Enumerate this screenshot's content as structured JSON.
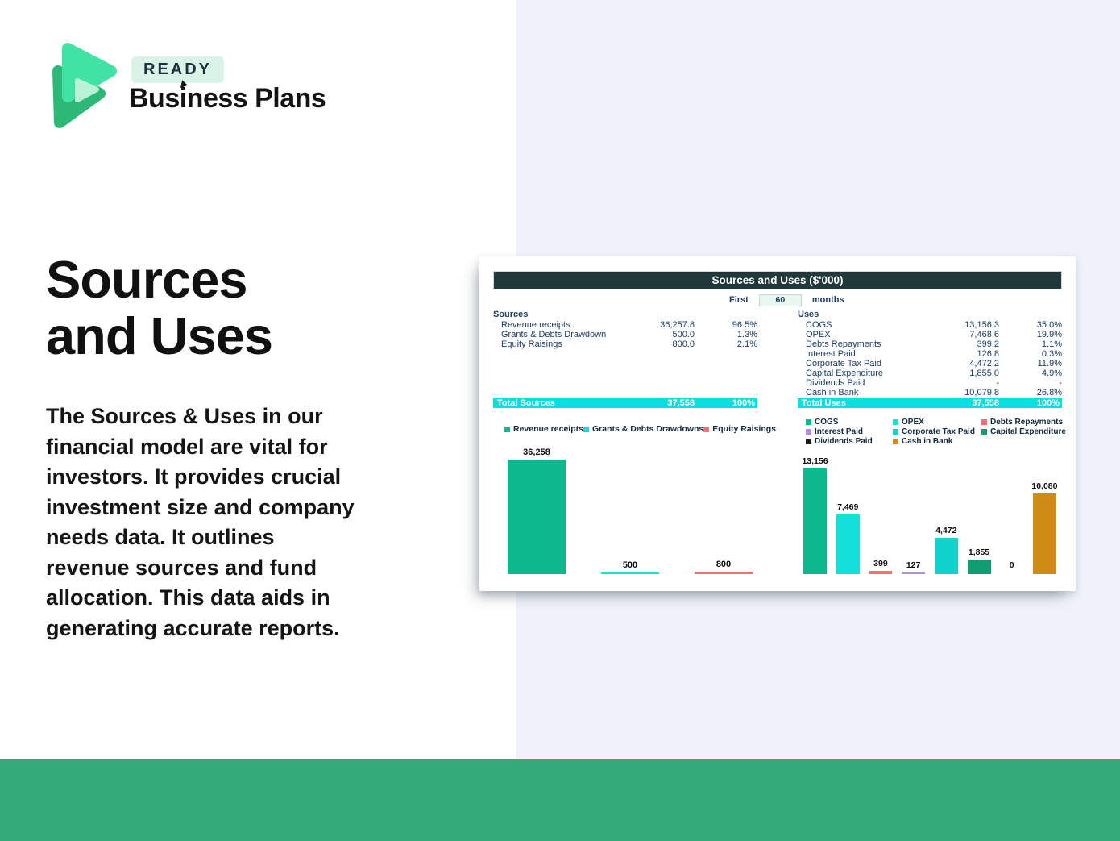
{
  "colors": {
    "footer_green": "#35ab79",
    "panel_bg": "#eff3f9",
    "badge_bg": "#d9f3e6",
    "brand_green": "#2eb877",
    "brand_green_light": "#40e3a4",
    "brand_green_pale": "#b9f2d6",
    "sheet_header_bg": "#21393b",
    "total_row_bg": "#0adede",
    "table_text": "#1e3c64"
  },
  "branding": {
    "badge": "READY",
    "wordmark": "Business Plans"
  },
  "hero": {
    "title_lines": [
      "Sources",
      "and Uses"
    ],
    "description_lines": [
      "The Sources & Uses in our",
      "financial model are vital for",
      "investors. It provides crucial",
      "investment size and company",
      "needs data. It outlines",
      "revenue sources and fund",
      "allocation. This data aids in",
      "generating accurate reports."
    ]
  },
  "sheet": {
    "title": "Sources and Uses ($'000)",
    "period": {
      "prefix": "First",
      "value": "60",
      "suffix": "months"
    },
    "sources": {
      "header": "Sources",
      "rows": [
        {
          "label": "Revenue receipts",
          "value": "36,257.8",
          "pct": "96.5%"
        },
        {
          "label": "Grants & Debts Drawdowns",
          "value": "500.0",
          "pct": "1.3%"
        },
        {
          "label": "Equity Raisings",
          "value": "800.0",
          "pct": "2.1%"
        }
      ],
      "total": {
        "label": "Total Sources",
        "value": "37,558",
        "pct": "100%"
      }
    },
    "uses": {
      "header": "Uses",
      "rows": [
        {
          "label": "COGS",
          "value": "13,156.3",
          "pct": "35.0%"
        },
        {
          "label": "OPEX",
          "value": "7,468.6",
          "pct": "19.9%"
        },
        {
          "label": "Debts Repayments",
          "value": "399.2",
          "pct": "1.1%"
        },
        {
          "label": "Interest Paid",
          "value": "126.8",
          "pct": "0.3%"
        },
        {
          "label": "Corporate Tax Paid",
          "value": "4,472.2",
          "pct": "11.9%"
        },
        {
          "label": "Capital Expenditure",
          "value": "1,855.0",
          "pct": "4.9%"
        },
        {
          "label": "Dividends Paid",
          "value": "-",
          "pct": "-"
        },
        {
          "label": "Cash in Bank",
          "value": "10,079.8",
          "pct": "26.8%"
        }
      ],
      "total": {
        "label": "Total Uses",
        "value": "37,558",
        "pct": "100%"
      }
    }
  },
  "chart_data": [
    {
      "type": "bar",
      "title": "Sources",
      "categories": [
        "Revenue receipts",
        "Grants & Debts Drawdowns",
        "Equity Raisings"
      ],
      "values": [
        36258,
        500,
        800
      ],
      "data_labels": [
        "36,258",
        "500",
        "800"
      ],
      "colors": [
        "#0db88d",
        "#13e0db",
        "#f96e6e"
      ],
      "legend": [
        {
          "label": "Revenue receipts",
          "color": "#0db88d"
        },
        {
          "label": "Grants & Debts Drawdowns",
          "color": "#13e0db"
        },
        {
          "label": "Equity Raisings",
          "color": "#f96e6e"
        }
      ],
      "ylim": [
        0,
        36258
      ],
      "grid": false,
      "legend_position": "top"
    },
    {
      "type": "bar",
      "title": "Uses",
      "categories": [
        "COGS",
        "OPEX",
        "Debts Repayments",
        "Interest Paid",
        "Corporate Tax Paid",
        "Capital Expenditure",
        "Dividends Paid",
        "Cash in Bank"
      ],
      "values": [
        13156,
        7469,
        399,
        127,
        4472,
        1855,
        0,
        10080
      ],
      "data_labels": [
        "13,156",
        "7,469",
        "399",
        "127",
        "4,472",
        "1,855",
        "0",
        "10,080"
      ],
      "colors": [
        "#0db88d",
        "#13e0db",
        "#f96e6e",
        "#b48be0",
        "#11d3ce",
        "#0f9e70",
        "#1a1a1a",
        "#cf8c15"
      ],
      "legend": [
        {
          "label": "COGS",
          "color": "#0db88d"
        },
        {
          "label": "OPEX",
          "color": "#13e0db"
        },
        {
          "label": "Debts Repayments",
          "color": "#f96e6e"
        },
        {
          "label": "Interest Paid",
          "color": "#b48be0"
        },
        {
          "label": "Corporate Tax Paid",
          "color": "#11d3ce"
        },
        {
          "label": "Capital Expenditure",
          "color": "#0f9e70"
        },
        {
          "label": "Dividends Paid",
          "color": "#1a1a1a"
        },
        {
          "label": "Cash in Bank",
          "color": "#cf8c15"
        }
      ],
      "ylim": [
        0,
        13156
      ],
      "grid": false,
      "legend_position": "top"
    }
  ]
}
